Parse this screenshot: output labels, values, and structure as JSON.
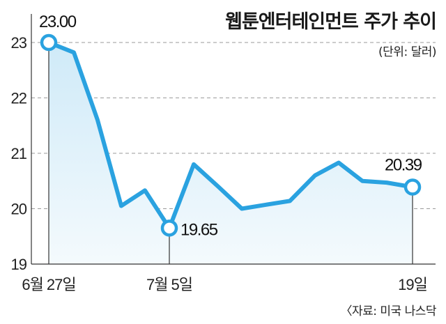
{
  "chart_data": {
    "type": "area",
    "title": "웹툰엔터테인먼트 주가 추이",
    "unit": "(단위: 달러)",
    "source": "〈자료: 미국 나스닥",
    "x_tick_labels": [
      "6월 27일",
      "7월 5일",
      "19일"
    ],
    "y_ticks": [
      19,
      20,
      21,
      22,
      23
    ],
    "ylim": [
      19,
      23.3
    ],
    "grid": true,
    "colors": {
      "line": "#2aa2e0",
      "fill_top": "#cfeaf8",
      "fill_bottom": "#f4fafd",
      "grid": "#9a9a9a",
      "axis": "#333333"
    },
    "series": [
      {
        "values": [
          23.0,
          22.82,
          21.6,
          20.05,
          20.33,
          19.65,
          20.8,
          20.4,
          20.0,
          20.07,
          20.14,
          20.6,
          20.83,
          20.5,
          20.47,
          20.39
        ]
      }
    ],
    "highlighted_points": [
      {
        "index": 0,
        "label": "23.00"
      },
      {
        "index": 5,
        "label": "19.65"
      },
      {
        "index": 15,
        "label": "20.39"
      }
    ]
  }
}
